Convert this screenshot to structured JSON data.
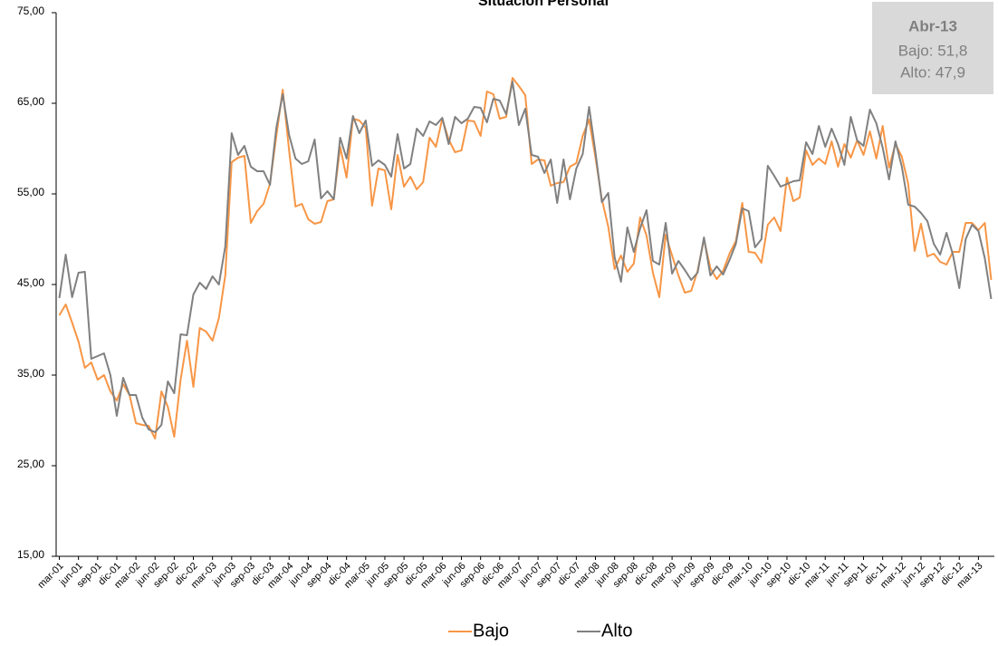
{
  "chart_data": {
    "type": "line",
    "title": "Situación Personal",
    "categories": [
      "mar-01",
      null,
      null,
      "jun-01",
      null,
      null,
      "sep-01",
      null,
      null,
      "dic-01",
      null,
      null,
      "mar-02",
      null,
      null,
      "jun-02",
      null,
      null,
      "sep-02",
      null,
      null,
      "dic-02",
      null,
      null,
      "mar-03",
      null,
      null,
      "jun-03",
      null,
      null,
      "sep-03",
      null,
      null,
      "dic-03",
      null,
      null,
      "mar-04",
      null,
      null,
      "jun-04",
      null,
      null,
      "sep-04",
      null,
      null,
      "dic-04",
      null,
      null,
      "mar-05",
      null,
      null,
      "jun-05",
      null,
      null,
      "sep-05",
      null,
      null,
      "dic-05",
      null,
      null,
      "mar-06",
      null,
      null,
      "jun-06",
      null,
      null,
      "sep-06",
      null,
      null,
      "dic-06",
      null,
      null,
      "mar-07",
      null,
      null,
      "jun-07",
      null,
      null,
      "sep-07",
      null,
      null,
      "dic-07",
      null,
      null,
      "mar-08",
      null,
      null,
      "jun-08",
      null,
      null,
      "sep-08",
      null,
      null,
      "dic-08",
      null,
      null,
      "mar-09",
      null,
      null,
      "jun-09",
      null,
      null,
      "sep-09",
      null,
      null,
      "dic-09",
      null,
      null,
      "mar-10",
      null,
      null,
      "jun-10",
      null,
      null,
      "sep-10",
      null,
      null,
      "dic-10",
      null,
      null,
      "mar-11",
      null,
      null,
      "jun-11",
      null,
      null,
      "sep-11",
      null,
      null,
      "dic-11",
      null,
      null,
      "mar-12",
      null,
      null,
      "jun-12",
      null,
      null,
      "sep-12",
      null,
      null,
      "dic-12",
      null,
      null,
      "mar-13",
      null,
      null
    ],
    "series": [
      {
        "name": "Bajo",
        "color": "#f79646",
        "values": [
          41.6,
          42.8,
          40.8,
          38.7,
          35.8,
          36.4,
          34.5,
          35.0,
          33.2,
          32.2,
          34.0,
          32.8,
          29.7,
          29.5,
          29.4,
          28.0,
          33.2,
          31.5,
          28.2,
          34.5,
          38.8,
          33.7,
          40.2,
          39.8,
          38.8,
          41.3,
          46.0,
          58.5,
          59.0,
          59.2,
          51.8,
          53.1,
          53.9,
          56.1,
          61.4,
          66.5,
          59.8,
          53.6,
          53.9,
          52.2,
          51.7,
          51.9,
          54.2,
          54.4,
          60.2,
          56.8,
          63.3,
          63.1,
          62.3,
          53.7,
          57.8,
          57.6,
          53.3,
          59.3,
          55.8,
          56.9,
          55.5,
          56.3,
          61.2,
          60.2,
          63.3,
          61.0,
          59.6,
          59.8,
          63.1,
          63.0,
          61.4,
          66.3,
          66.0,
          63.3,
          63.5,
          67.8,
          66.9,
          65.9,
          58.3,
          58.8,
          58.7,
          55.9,
          56.2,
          56.3,
          58.0,
          58.4,
          61.4,
          63.2,
          59.0,
          54.4,
          51.4,
          46.7,
          48.2,
          46.4,
          47.3,
          52.4,
          50.4,
          46.3,
          43.6,
          50.5,
          48.2,
          46.0,
          44.1,
          44.3,
          46.5,
          50.0,
          46.8,
          45.6,
          46.5,
          48.4,
          49.8,
          54.0,
          48.6,
          48.5,
          47.4,
          51.6,
          52.4,
          50.9,
          56.8,
          54.2,
          54.6,
          59.8,
          58.2,
          58.9,
          58.3,
          60.8,
          58.0,
          60.5,
          59.0,
          60.9,
          59.3,
          61.9,
          58.9,
          62.5,
          57.9,
          60.5,
          59.1,
          56.1,
          48.7,
          51.7,
          48.1,
          48.4,
          47.5,
          47.2,
          48.6,
          48.6,
          51.8,
          51.8,
          51.0,
          51.8,
          45.5
        ]
      },
      {
        "name": "Alto",
        "color": "#808080",
        "values": [
          43.5,
          48.3,
          43.6,
          46.3,
          46.4,
          36.8,
          37.1,
          37.4,
          35.0,
          30.5,
          34.7,
          32.8,
          32.8,
          30.3,
          29.0,
          28.7,
          29.5,
          34.3,
          33.0,
          39.5,
          39.4,
          43.9,
          45.2,
          44.5,
          45.9,
          45.0,
          49.2,
          61.7,
          59.3,
          60.3,
          58.0,
          57.5,
          57.5,
          56.0,
          62.3,
          66.0,
          61.5,
          58.9,
          58.3,
          58.6,
          61.0,
          54.5,
          55.3,
          54.4,
          61.2,
          58.9,
          63.6,
          61.7,
          63.1,
          58.1,
          58.7,
          58.2,
          56.9,
          61.6,
          57.8,
          58.3,
          62.2,
          61.4,
          63.0,
          62.6,
          63.4,
          60.5,
          63.5,
          62.8,
          63.3,
          64.6,
          64.5,
          62.9,
          65.5,
          65.3,
          63.8,
          67.4,
          62.6,
          64.4,
          59.3,
          59.1,
          57.3,
          58.8,
          54.0,
          58.8,
          54.4,
          57.8,
          59.4,
          64.6,
          59.6,
          54.1,
          55.1,
          48.0,
          45.3,
          51.3,
          48.6,
          51.2,
          53.2,
          47.6,
          47.2,
          51.8,
          46.2,
          47.6,
          46.6,
          45.5,
          46.3,
          50.2,
          46.0,
          47.0,
          46.1,
          47.7,
          49.5,
          53.4,
          53.1,
          49.1,
          50.0,
          58.1,
          57.0,
          55.8,
          56.1,
          56.4,
          56.5,
          60.7,
          59.4,
          62.5,
          60.2,
          62.2,
          60.5,
          58.2,
          63.5,
          60.9,
          60.3,
          64.3,
          62.8,
          60.1,
          56.6,
          60.8,
          58.0,
          53.8,
          53.6,
          52.9,
          52.0,
          49.5,
          48.3,
          50.7,
          48.3,
          44.6,
          50.0,
          51.6,
          50.9,
          47.9,
          43.4
        ]
      }
    ],
    "ylim": [
      15,
      75
    ],
    "yticks": [
      {
        "value": 15,
        "label": "15,00"
      },
      {
        "value": 25,
        "label": "25,00"
      },
      {
        "value": 35,
        "label": "35,00"
      },
      {
        "value": 45,
        "label": "45,00"
      },
      {
        "value": 55,
        "label": "55,00"
      },
      {
        "value": 65,
        "label": "65,00"
      },
      {
        "value": 75,
        "label": "75,00"
      }
    ],
    "grid": false,
    "legend": "bottom",
    "annotation": {
      "title": "Abr-13",
      "lines": [
        "Bajo: 51,8",
        "Alto: 47,9"
      ]
    }
  }
}
